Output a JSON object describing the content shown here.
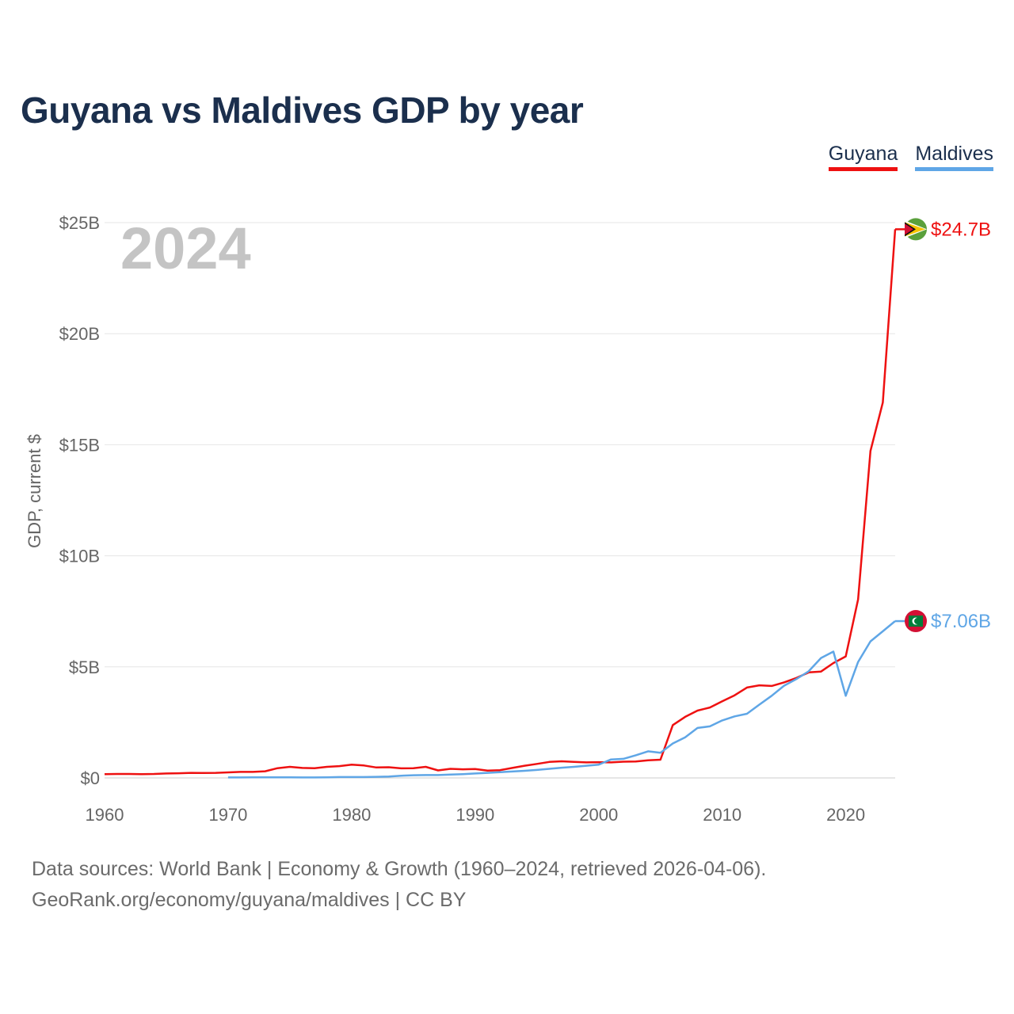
{
  "title": "Guyana vs Maldives GDP by year",
  "legend": [
    {
      "label": "Guyana",
      "color": "#ee1111"
    },
    {
      "label": "Maldives",
      "color": "#5fa6e6"
    }
  ],
  "year_watermark": "2024",
  "footer": {
    "line1": "Data sources: World Bank | Economy & Growth (1960–2024, retrieved 2026-04-06).",
    "line2": "GeoRank.org/economy/guyana/maldives | CC BY"
  },
  "chart_data": {
    "type": "line",
    "title": "Guyana vs Maldives GDP by year",
    "xlabel": "",
    "ylabel": "GDP, current $",
    "xlim": [
      1960,
      2024
    ],
    "ylim": [
      0,
      25
    ],
    "value_unit": "billion USD",
    "x_ticks": [
      1960,
      1970,
      1980,
      1990,
      2000,
      2010,
      2020
    ],
    "x_tick_labels": [
      "1960",
      "1970",
      "1980",
      "1990",
      "2000",
      "2010",
      "2020"
    ],
    "y_ticks": [
      0,
      5,
      10,
      15,
      20,
      25
    ],
    "y_tick_labels": [
      "$0",
      "$5B",
      "$10B",
      "$15B",
      "$20B",
      "$25B"
    ],
    "grid": true,
    "legend_position": "top-right",
    "series": [
      {
        "name": "Guyana",
        "color": "#ee1111",
        "end_label": "$24.7B",
        "x": [
          1960,
          1961,
          1962,
          1963,
          1964,
          1965,
          1966,
          1967,
          1968,
          1969,
          1970,
          1971,
          1972,
          1973,
          1974,
          1975,
          1976,
          1977,
          1978,
          1979,
          1980,
          1981,
          1982,
          1983,
          1984,
          1985,
          1986,
          1987,
          1988,
          1989,
          1990,
          1991,
          1992,
          1993,
          1994,
          1995,
          1996,
          1997,
          1998,
          1999,
          2000,
          2001,
          2002,
          2003,
          2004,
          2005,
          2006,
          2007,
          2008,
          2009,
          2010,
          2011,
          2012,
          2013,
          2014,
          2015,
          2016,
          2017,
          2018,
          2019,
          2020,
          2021,
          2022,
          2023,
          2024
        ],
        "values": [
          0.17,
          0.18,
          0.18,
          0.17,
          0.18,
          0.2,
          0.21,
          0.23,
          0.22,
          0.23,
          0.25,
          0.27,
          0.27,
          0.3,
          0.44,
          0.5,
          0.45,
          0.44,
          0.5,
          0.53,
          0.6,
          0.56,
          0.47,
          0.48,
          0.43,
          0.44,
          0.5,
          0.34,
          0.41,
          0.39,
          0.4,
          0.33,
          0.35,
          0.45,
          0.55,
          0.63,
          0.72,
          0.75,
          0.72,
          0.7,
          0.71,
          0.7,
          0.73,
          0.74,
          0.79,
          0.82,
          2.38,
          2.75,
          3.03,
          3.17,
          3.45,
          3.72,
          4.07,
          4.17,
          4.14,
          4.3,
          4.5,
          4.75,
          4.79,
          5.17,
          5.47,
          8.04,
          14.72,
          16.9,
          24.7
        ]
      },
      {
        "name": "Maldives",
        "color": "#5fa6e6",
        "end_label": "$7.06B",
        "x": [
          1970,
          1971,
          1972,
          1973,
          1974,
          1975,
          1976,
          1977,
          1978,
          1979,
          1980,
          1981,
          1982,
          1983,
          1984,
          1985,
          1986,
          1987,
          1988,
          1989,
          1990,
          1991,
          1992,
          1993,
          1994,
          1995,
          1996,
          1997,
          1998,
          1999,
          2000,
          2001,
          2002,
          2003,
          2004,
          2005,
          2006,
          2007,
          2008,
          2009,
          2010,
          2011,
          2012,
          2013,
          2014,
          2015,
          2016,
          2017,
          2018,
          2019,
          2020,
          2021,
          2022,
          2023,
          2024
        ],
        "values": [
          0.02,
          0.02,
          0.03,
          0.03,
          0.03,
          0.03,
          0.02,
          0.02,
          0.03,
          0.04,
          0.04,
          0.04,
          0.05,
          0.06,
          0.1,
          0.12,
          0.13,
          0.13,
          0.15,
          0.17,
          0.2,
          0.23,
          0.26,
          0.29,
          0.32,
          0.36,
          0.41,
          0.46,
          0.5,
          0.55,
          0.6,
          0.83,
          0.86,
          1.02,
          1.2,
          1.13,
          1.55,
          1.83,
          2.25,
          2.32,
          2.59,
          2.77,
          2.89,
          3.3,
          3.7,
          4.15,
          4.45,
          4.8,
          5.4,
          5.69,
          3.7,
          5.22,
          6.15,
          6.6,
          7.06
        ]
      }
    ]
  }
}
